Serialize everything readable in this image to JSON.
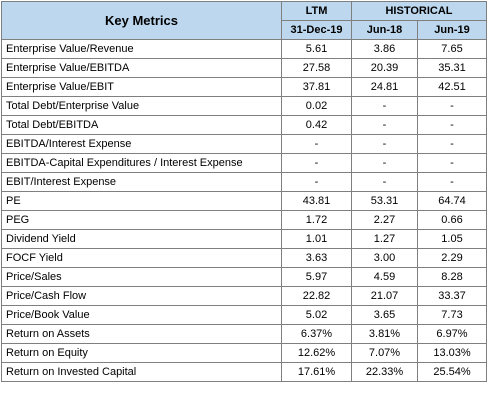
{
  "header": {
    "title": "Key Metrics",
    "ltm_label": "LTM",
    "historical_label": "HISTORICAL",
    "col_ltm": "31-Dec-19",
    "col_h1": "Jun-18",
    "col_h2": "Jun-19"
  },
  "header_color": "#bdd7ee",
  "rows": [
    {
      "metric": "Enterprise Value/Revenue",
      "ltm": "5.61",
      "jun18": "3.86",
      "jun19": "7.65"
    },
    {
      "metric": "Enterprise Value/EBITDA",
      "ltm": "27.58",
      "jun18": "20.39",
      "jun19": "35.31"
    },
    {
      "metric": "Enterprise Value/EBIT",
      "ltm": "37.81",
      "jun18": "24.81",
      "jun19": "42.51"
    },
    {
      "metric": "Total Debt/Enterprise Value",
      "ltm": "0.02",
      "jun18": "-",
      "jun19": "-"
    },
    {
      "metric": "Total Debt/EBITDA",
      "ltm": "0.42",
      "jun18": "-",
      "jun19": "-"
    },
    {
      "metric": "EBITDA/Interest Expense",
      "ltm": "-",
      "jun18": "-",
      "jun19": "-"
    },
    {
      "metric": "EBITDA-Capital Expenditures / Interest Expense",
      "ltm": "-",
      "jun18": "-",
      "jun19": "-"
    },
    {
      "metric": "EBIT/Interest Expense",
      "ltm": "-",
      "jun18": "-",
      "jun19": "-"
    },
    {
      "metric": "PE",
      "ltm": "43.81",
      "jun18": "53.31",
      "jun19": "64.74"
    },
    {
      "metric": "PEG",
      "ltm": "1.72",
      "jun18": "2.27",
      "jun19": "0.66"
    },
    {
      "metric": "Dividend Yield",
      "ltm": "1.01",
      "jun18": "1.27",
      "jun19": "1.05"
    },
    {
      "metric": "FOCF Yield",
      "ltm": "3.63",
      "jun18": "3.00",
      "jun19": "2.29"
    },
    {
      "metric": "Price/Sales",
      "ltm": "5.97",
      "jun18": "4.59",
      "jun19": "8.28"
    },
    {
      "metric": "Price/Cash Flow",
      "ltm": "22.82",
      "jun18": "21.07",
      "jun19": "33.37"
    },
    {
      "metric": "Price/Book Value",
      "ltm": "5.02",
      "jun18": "3.65",
      "jun19": "7.73"
    },
    {
      "metric": "Return on Assets",
      "ltm": "6.37%",
      "jun18": "3.81%",
      "jun19": "6.97%"
    },
    {
      "metric": "Return on Equity",
      "ltm": "12.62%",
      "jun18": "7.07%",
      "jun19": "13.03%"
    },
    {
      "metric": "Return on Invested Capital",
      "ltm": "17.61%",
      "jun18": "22.33%",
      "jun19": "25.54%"
    }
  ]
}
